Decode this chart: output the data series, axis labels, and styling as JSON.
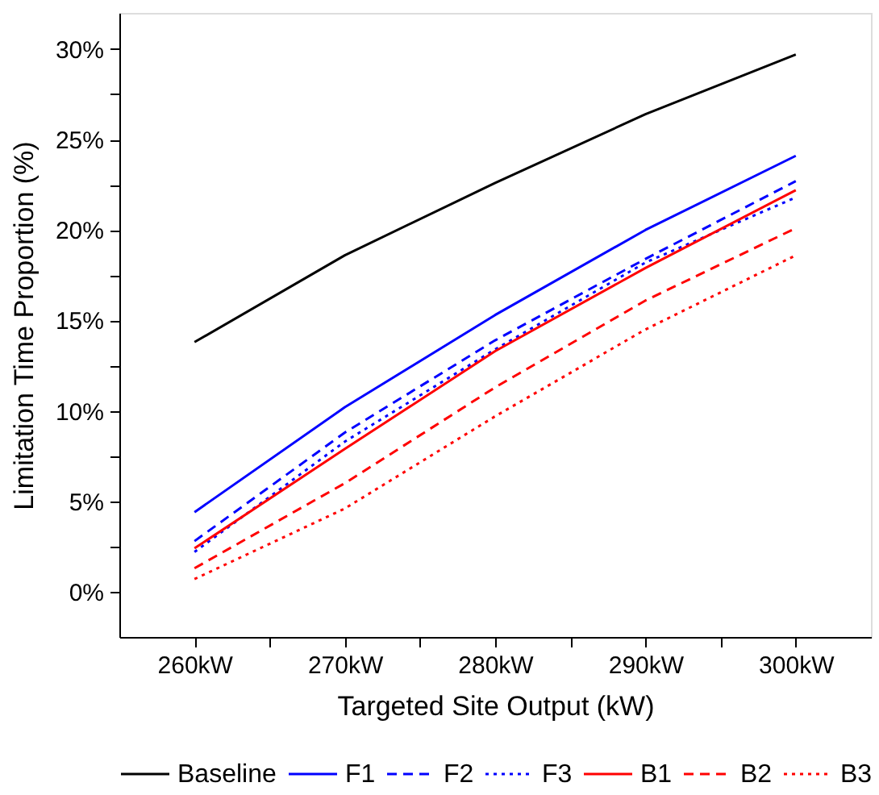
{
  "chart_data": {
    "type": "line",
    "xlabel": "Targeted Site Output (kW)",
    "ylabel": "Limitation Time Proportion (%)",
    "x": [
      260,
      270,
      280,
      290,
      300
    ],
    "xlim": [
      255,
      305
    ],
    "xticks": [
      {
        "value": 260,
        "label": "260kW"
      },
      {
        "value": 265,
        "label": null
      },
      {
        "value": 270,
        "label": "270kW"
      },
      {
        "value": 275,
        "label": null
      },
      {
        "value": 280,
        "label": "280kW"
      },
      {
        "value": 285,
        "label": null
      },
      {
        "value": 290,
        "label": "290kW"
      },
      {
        "value": 295,
        "label": null
      },
      {
        "value": 300,
        "label": "300kW"
      }
    ],
    "ylim": [
      -2.5,
      32
    ],
    "yticks": [
      {
        "value": 0,
        "label": "0%"
      },
      {
        "value": 2.5,
        "label": null
      },
      {
        "value": 5,
        "label": "5%"
      },
      {
        "value": 7.5,
        "label": null
      },
      {
        "value": 10,
        "label": "10%"
      },
      {
        "value": 12.5,
        "label": null
      },
      {
        "value": 15,
        "label": "15%"
      },
      {
        "value": 17.5,
        "label": null
      },
      {
        "value": 20,
        "label": "20%"
      },
      {
        "value": 22.5,
        "label": null
      },
      {
        "value": 25,
        "label": "25%"
      },
      {
        "value": 27.5,
        "label": null
      },
      {
        "value": 30,
        "label": "30%"
      }
    ],
    "grid": false,
    "legend": "bottom",
    "marker": "none",
    "series": [
      {
        "name": "Baseline",
        "color": "#000000",
        "line_style": "solid",
        "values": [
          13.8,
          18.6,
          22.6,
          26.4,
          29.7
        ]
      },
      {
        "name": "F1",
        "color": "#0000ff",
        "line_style": "solid",
        "values": [
          4.4,
          10.2,
          15.3,
          20.0,
          24.1
        ]
      },
      {
        "name": "F2",
        "color": "#0000ff",
        "line_style": "dashed",
        "values": [
          2.8,
          8.8,
          13.9,
          18.4,
          22.7
        ]
      },
      {
        "name": "F3",
        "color": "#0000ff",
        "line_style": "dotted",
        "values": [
          2.2,
          8.3,
          13.4,
          18.2,
          21.8
        ]
      },
      {
        "name": "B1",
        "color": "#ff0000",
        "line_style": "solid",
        "values": [
          2.4,
          7.9,
          13.3,
          17.9,
          22.2
        ]
      },
      {
        "name": "B2",
        "color": "#ff0000",
        "line_style": "dashed",
        "values": [
          1.3,
          6.0,
          11.3,
          16.1,
          20.1
        ]
      },
      {
        "name": "B3",
        "color": "#ff0000",
        "line_style": "dotted",
        "values": [
          0.7,
          4.6,
          9.7,
          14.5,
          18.6
        ]
      }
    ]
  }
}
